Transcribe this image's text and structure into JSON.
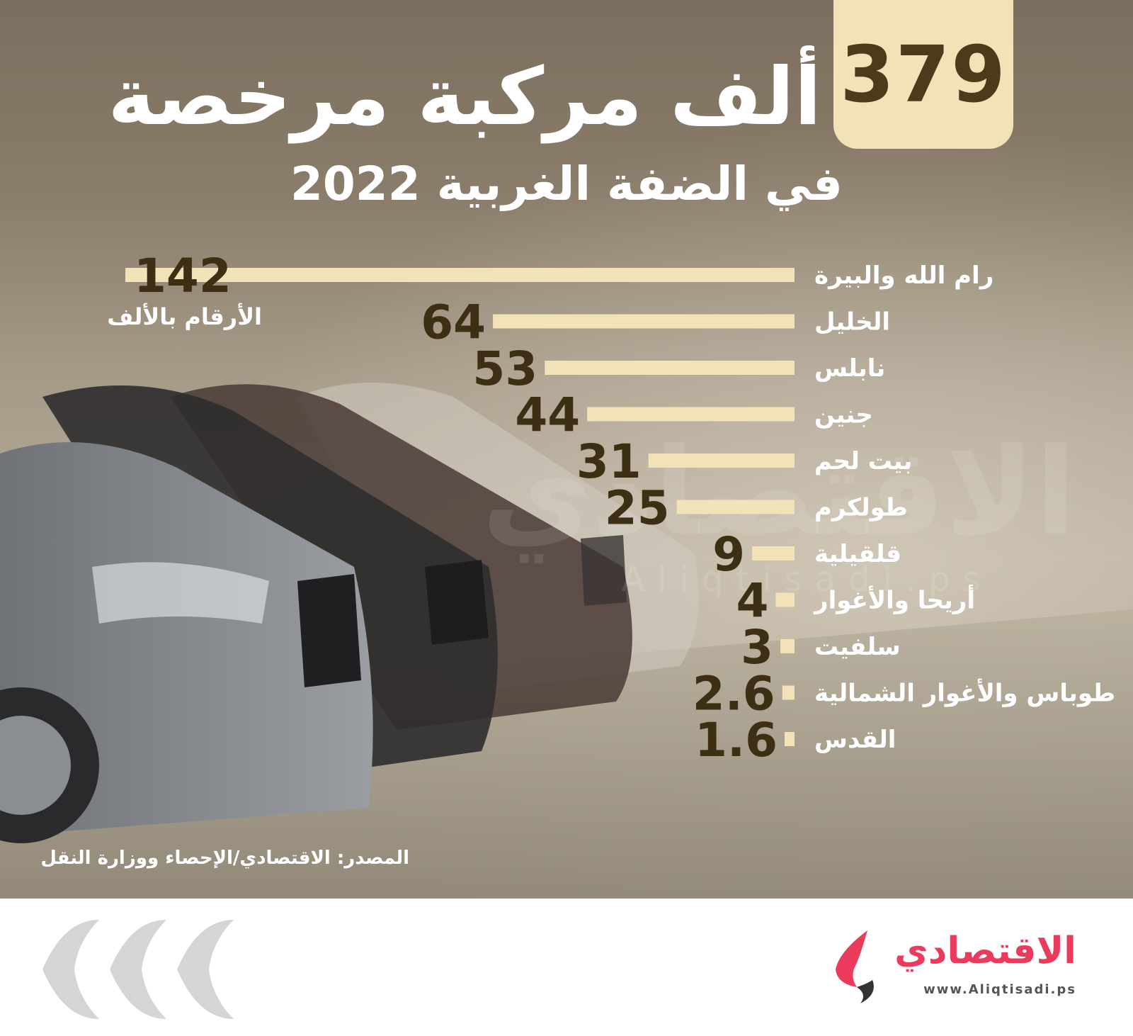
{
  "header": {
    "highlight_number": "379",
    "title": "ألف مركبة مرخصة",
    "subtitle": "في الضفة الغربية 2022"
  },
  "unit_note": "الأرقام بالألف",
  "source": "المصدر: الاقتصادي/الإحصاء ووزارة النقل",
  "watermark": {
    "arabic": "الاقتصادي",
    "url": "Aliqtisadi.ps"
  },
  "brand": {
    "name": "الاقتصادي",
    "url": "www.Aliqtisadi.ps",
    "color": "#ea3b5d"
  },
  "colors": {
    "bar": "#f1e2b8",
    "value_text": "#3d2f14",
    "label_text": "#ffffff"
  },
  "chart_data": {
    "type": "bar",
    "orientation": "horizontal",
    "title": "379 ألف مركبة مرخصة في الضفة الغربية 2022",
    "unit": "الأرقام بالألف",
    "categories": [
      "رام الله والبيرة",
      "الخليل",
      "نابلس",
      "جنين",
      "بيت لحم",
      "طولكرم",
      "قلقيلية",
      "أريحا والأغوار",
      "سلفيت",
      "طوباس والأغوار الشمالية",
      "القدس"
    ],
    "values": [
      142,
      64,
      53,
      44,
      31,
      25,
      9,
      4,
      3,
      2.6,
      1.6
    ],
    "value_labels": [
      "142",
      "64",
      "53",
      "44",
      "31",
      "25",
      "9",
      "4",
      "3",
      "2.6",
      "1.6"
    ],
    "xlim": [
      0,
      142
    ]
  }
}
